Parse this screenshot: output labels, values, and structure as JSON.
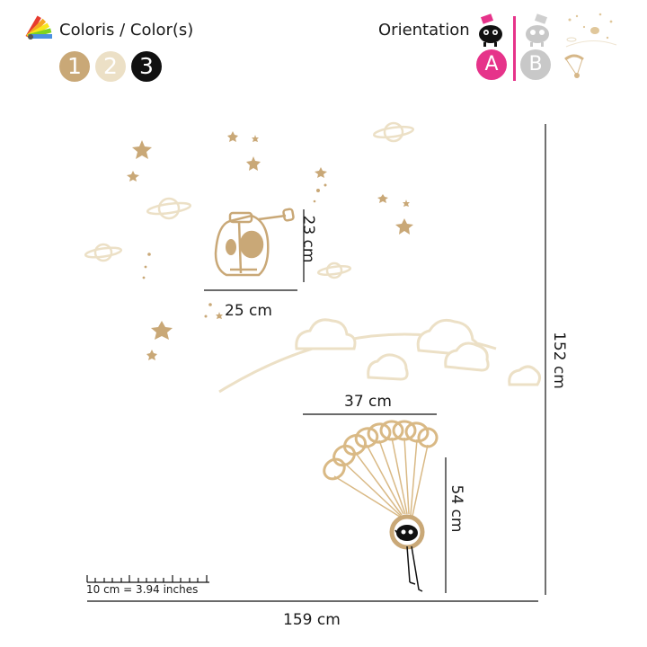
{
  "header": {
    "colors_label": "Coloris / Color(s)",
    "orientation_label": "Orientation",
    "color_swatches": [
      {
        "label": "1",
        "hex": "#c9a877"
      },
      {
        "label": "2",
        "hex": "#ece0c6"
      },
      {
        "label": "3",
        "hex": "#111111"
      }
    ],
    "orientation_options": [
      {
        "label": "A",
        "hex": "#e6338a"
      },
      {
        "label": "B",
        "hex": "#c8c8c8"
      }
    ]
  },
  "dimensions": {
    "rocket_height": "23 cm",
    "rocket_width": "25 cm",
    "parachute_width": "37 cm",
    "parachute_height": "54 cm",
    "total_height": "152 cm",
    "total_width": "159 cm",
    "scale_note": "10 cm = 3.94 inches"
  },
  "colors": {
    "gold": "#c9a877",
    "cream": "#ece0c6",
    "black": "#111111",
    "pink": "#e6338a"
  },
  "icons": {
    "palette": "color-palette-icon",
    "sheep": "sheep-icon",
    "rocket": "rocket-icon",
    "parachute": "parachute-icon"
  }
}
